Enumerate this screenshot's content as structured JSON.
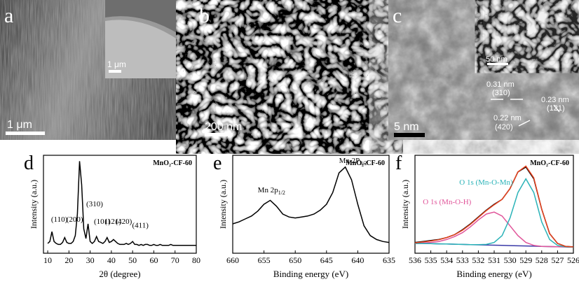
{
  "panels": [
    {
      "label": "a",
      "scale_bar": "1 μm",
      "inset_scale_bar": "1 μm"
    },
    {
      "label": "b",
      "scale_bar": "200 nm"
    },
    {
      "label": "c",
      "scale_bar": "5 nm",
      "inset_scale_bar": "50 nm",
      "annotations": [
        "0.31 nm",
        "(310)",
        "0.23 nm",
        "(121)",
        "0.22 nm",
        "(420)"
      ]
    }
  ],
  "chart_data": [
    {
      "type": "line",
      "panel_label": "d",
      "title": "MnO₂-CF-60",
      "x_label": "2θ (degree)",
      "y_label": "Intensity (a.u.)",
      "xlim": [
        8,
        80
      ],
      "xticks": [
        10,
        20,
        30,
        40,
        50,
        60,
        70,
        80
      ],
      "ylim": [
        0,
        100
      ],
      "x": [
        10,
        11,
        12,
        13,
        14,
        15,
        16,
        17,
        18,
        19,
        20,
        21,
        22,
        23,
        24,
        25,
        26,
        27,
        28,
        29,
        30,
        31,
        32,
        33,
        34,
        35,
        36,
        37,
        38,
        39,
        40,
        41,
        42,
        43,
        44,
        45,
        46,
        47,
        48,
        49,
        50,
        51,
        52,
        53,
        54,
        55,
        56,
        57,
        58,
        59,
        60,
        61,
        62,
        63,
        64,
        65,
        66,
        67,
        68,
        69,
        70,
        71,
        72,
        73,
        74,
        75,
        76,
        77,
        78,
        79,
        80
      ],
      "series": [
        {
          "color": "#000000",
          "values": [
            10,
            12,
            22,
            12,
            10,
            9,
            9,
            11,
            16,
            11,
            10,
            10,
            12,
            18,
            40,
            94,
            70,
            25,
            15,
            30,
            12,
            10,
            12,
            17,
            12,
            11,
            10,
            12,
            16,
            11,
            12,
            14,
            12,
            10,
            9,
            9,
            9,
            10,
            9,
            10,
            12,
            9,
            9,
            8,
            9,
            8,
            9,
            9,
            8,
            8,
            9,
            8,
            8,
            9,
            8,
            8,
            8,
            8,
            9,
            8,
            8,
            8,
            8,
            8,
            8,
            8,
            8,
            8,
            8,
            8,
            8
          ]
        }
      ],
      "annotations": [
        {
          "text": "(110)"
        },
        {
          "text": "(200)"
        },
        {
          "text": "(310)"
        },
        {
          "text": "(101)"
        },
        {
          "text": "(121)"
        },
        {
          "text": "(420)"
        },
        {
          "text": "(411)"
        }
      ]
    },
    {
      "type": "line",
      "panel_label": "e",
      "title": "MnO₂-CF-60",
      "x_label": "Binding energy (eV)",
      "y_label": "Intensity (a.u.)",
      "xlim": [
        660,
        635
      ],
      "xticks": [
        660,
        655,
        650,
        645,
        640,
        635
      ],
      "ylim": [
        0,
        100
      ],
      "x": [
        660,
        659,
        658,
        657,
        656,
        655,
        654,
        653,
        652,
        651,
        650,
        649,
        648,
        647,
        646,
        645,
        644,
        643,
        642,
        641,
        640,
        639,
        638,
        637,
        636,
        635
      ],
      "series": [
        {
          "color": "#000000",
          "values": [
            30,
            32,
            35,
            38,
            43,
            50,
            54,
            48,
            40,
            37,
            36,
            37,
            38,
            40,
            44,
            50,
            62,
            82,
            88,
            75,
            50,
            28,
            18,
            14,
            12,
            11
          ]
        }
      ],
      "annotations": [
        {
          "text": "Mn 2p",
          "sub": "1/2"
        },
        {
          "text": "Mn 2P",
          "sub": "3/2"
        }
      ]
    },
    {
      "type": "line",
      "panel_label": "f",
      "title": "MnO₂-CF-60",
      "x_label": "Binding energy (eV)",
      "y_label": "Intensity (a.u.)",
      "xlim": [
        536,
        526
      ],
      "xticks": [
        536,
        535,
        534,
        533,
        532,
        531,
        530,
        529,
        528,
        527,
        526
      ],
      "ylim": [
        0,
        100
      ],
      "x": [
        536,
        535.5,
        535,
        534.5,
        534,
        533.5,
        533,
        532.5,
        532,
        531.5,
        531,
        530.5,
        530,
        529.5,
        529,
        528.5,
        528,
        527.5,
        527,
        526.5,
        526
      ],
      "series": [
        {
          "color": "#3a3aa8",
          "values": [
            10,
            10,
            9.8,
            9.6,
            9.4,
            9.2,
            9,
            8.8,
            8.6,
            8.4,
            8.2,
            8,
            7.8,
            7.6,
            7.4,
            7.2,
            7,
            6.8,
            6.6,
            6.4,
            6.2
          ]
        },
        {
          "color": "#e0559a",
          "values": [
            10,
            10.5,
            11,
            12,
            14,
            17,
            21,
            27,
            34,
            40,
            42,
            38,
            28,
            18,
            11,
            8,
            7,
            6.8,
            6.6,
            6.4,
            6.2
          ]
        },
        {
          "color": "#2bb3b8",
          "values": [
            10,
            10,
            9.8,
            9.6,
            9.4,
            9.2,
            9,
            8.8,
            8.7,
            9,
            11,
            18,
            36,
            62,
            76,
            62,
            32,
            14,
            8,
            6.5,
            6.2
          ]
        },
        {
          "color": "#000000",
          "values": [
            11,
            12,
            13,
            14,
            16,
            19,
            24,
            30,
            37,
            44,
            50,
            55,
            66,
            83,
            88,
            76,
            45,
            20,
            10,
            7,
            6.5
          ]
        },
        {
          "color": "#e8401c",
          "values": [
            10.5,
            11.5,
            12.5,
            13.8,
            16,
            19,
            23.5,
            29.5,
            36.5,
            43.5,
            49.5,
            55,
            66,
            83,
            89,
            77,
            45,
            20,
            10,
            7,
            6.4
          ]
        }
      ],
      "annotations": [
        {
          "text": "O 1s (Mn-O-Mn)",
          "color": "#2bb3b8"
        },
        {
          "text": "O 1s (Mn-O-H)",
          "color": "#e0559a"
        }
      ]
    }
  ]
}
